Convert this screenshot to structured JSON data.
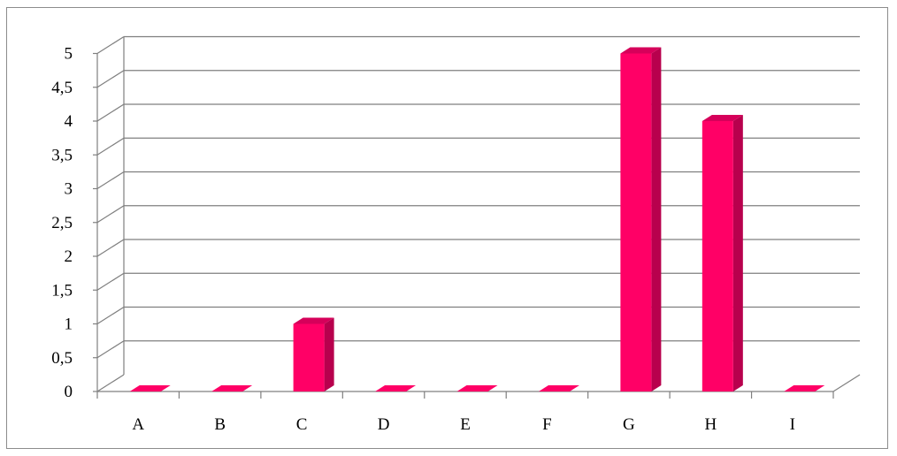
{
  "chart_data": {
    "type": "bar",
    "style": "3d-column",
    "categories": [
      "A",
      "B",
      "C",
      "D",
      "E",
      "F",
      "G",
      "H",
      "I"
    ],
    "values": [
      0,
      0,
      1,
      0,
      0,
      0,
      5,
      4,
      0
    ],
    "ylim": [
      0,
      5
    ],
    "ytick_labels": [
      "0",
      "0,5",
      "1",
      "1,5",
      "2",
      "2,5",
      "3",
      "3,5",
      "4",
      "4,5",
      "5"
    ],
    "grid": true,
    "legend": "none",
    "colors": {
      "bar_front": "#ff0066",
      "bar_side": "#b8004d",
      "bar_top": "#d6005a",
      "grid": "#7f7f7f",
      "axis": "#7f7f7f"
    }
  }
}
